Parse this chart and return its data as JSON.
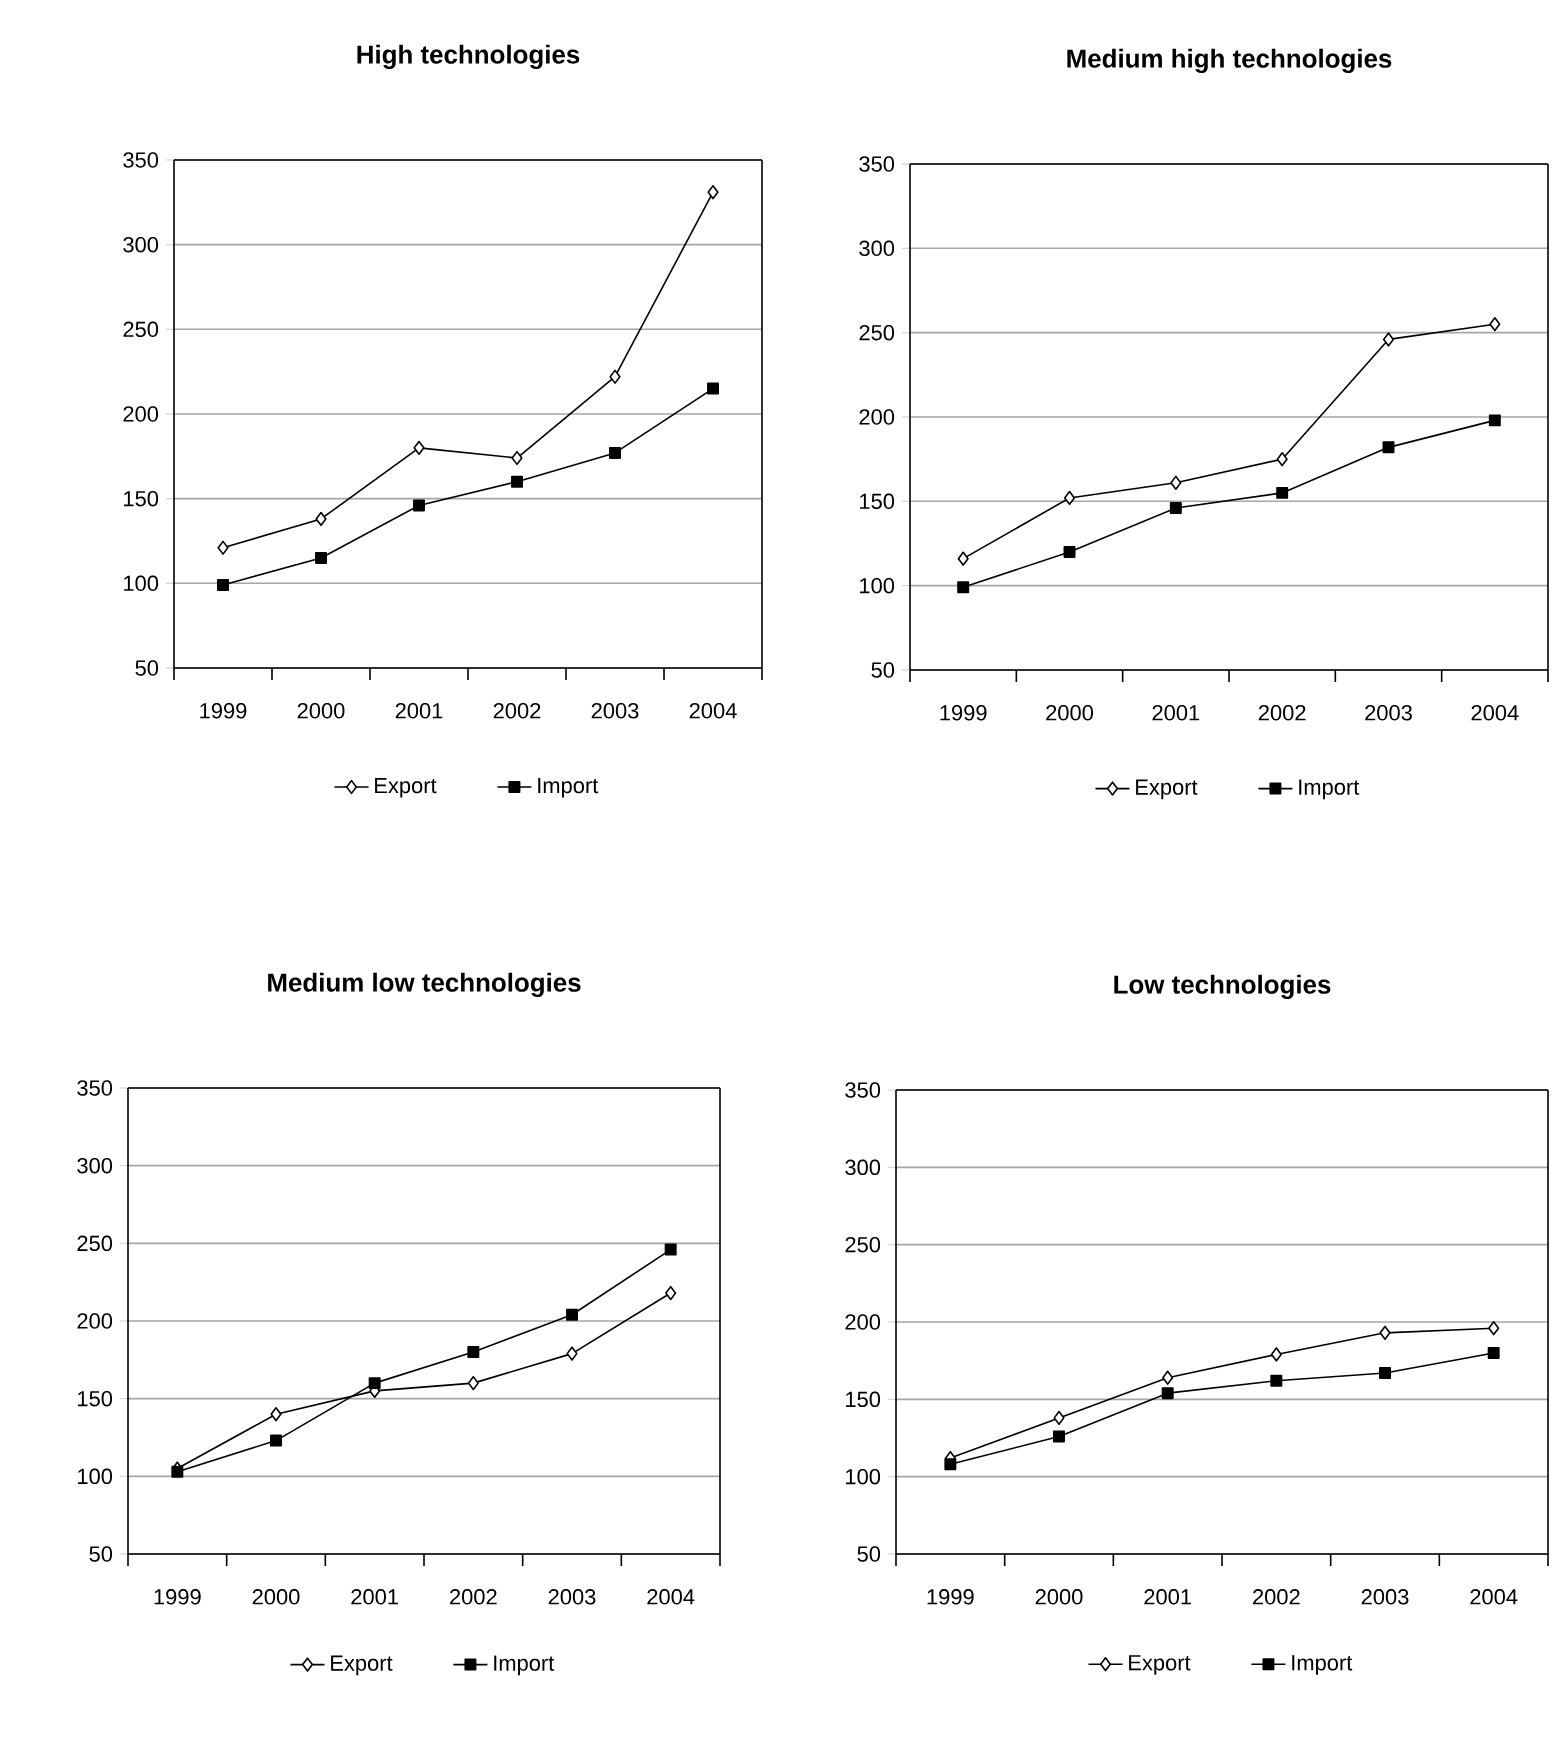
{
  "chart_data": [
    {
      "type": "line",
      "title": "High technologies",
      "categories": [
        "1999",
        "2000",
        "2001",
        "2002",
        "2003",
        "2004"
      ],
      "ylim": [
        50,
        350
      ],
      "yticks": [
        50,
        100,
        150,
        200,
        250,
        300,
        350
      ],
      "grid": "y",
      "legend": "bottom",
      "series": [
        {
          "name": "Export",
          "color": "#000000",
          "marker": "diamond",
          "values": [
            121,
            138,
            180,
            174,
            222,
            331
          ]
        },
        {
          "name": "Import",
          "color": "#000000",
          "marker": "square",
          "values": [
            99,
            115,
            146,
            160,
            177,
            215
          ]
        }
      ]
    },
    {
      "type": "line",
      "title": "Medium high technologies",
      "categories": [
        "1999",
        "2000",
        "2001",
        "2002",
        "2003",
        "2004"
      ],
      "ylim": [
        50,
        350
      ],
      "yticks": [
        50,
        100,
        150,
        200,
        250,
        300,
        350
      ],
      "grid": "y",
      "legend": "bottom",
      "series": [
        {
          "name": "Export",
          "color": "#000000",
          "marker": "diamond",
          "values": [
            116,
            152,
            161,
            175,
            246,
            255
          ]
        },
        {
          "name": "Import",
          "color": "#000000",
          "marker": "square",
          "values": [
            99,
            120,
            146,
            155,
            182,
            198
          ]
        }
      ]
    },
    {
      "type": "line",
      "title": "Medium low technologies",
      "categories": [
        "1999",
        "2000",
        "2001",
        "2002",
        "2003",
        "2004"
      ],
      "ylim": [
        50,
        350
      ],
      "yticks": [
        50,
        100,
        150,
        200,
        250,
        300,
        350
      ],
      "grid": "y",
      "legend": "bottom",
      "series": [
        {
          "name": "Export",
          "color": "#000000",
          "marker": "diamond",
          "values": [
            105,
            140,
            155,
            160,
            179,
            218
          ]
        },
        {
          "name": "Import",
          "color": "#000000",
          "marker": "square",
          "values": [
            103,
            123,
            160,
            180,
            204,
            246
          ]
        }
      ]
    },
    {
      "type": "line",
      "title": "Low technologies",
      "categories": [
        "1999",
        "2000",
        "2001",
        "2002",
        "2003",
        "2004"
      ],
      "ylim": [
        50,
        350
      ],
      "yticks": [
        50,
        100,
        150,
        200,
        250,
        300,
        350
      ],
      "grid": "y",
      "legend": "bottom",
      "series": [
        {
          "name": "Export",
          "color": "#000000",
          "marker": "diamond",
          "values": [
            112,
            138,
            164,
            179,
            193,
            196
          ]
        },
        {
          "name": "Import",
          "color": "#000000",
          "marker": "square",
          "values": [
            108,
            126,
            154,
            162,
            167,
            180
          ]
        }
      ]
    }
  ]
}
